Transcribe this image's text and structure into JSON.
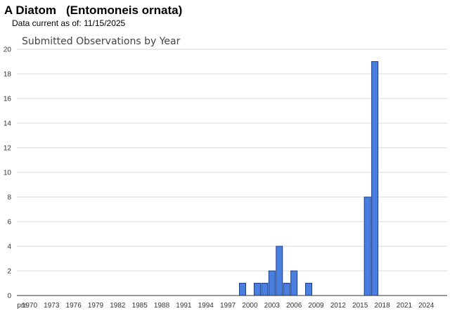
{
  "header": {
    "common_name": "A Diatom",
    "scientific_name": "(Entomoneis ornata)",
    "data_current_label": "Data current as of:",
    "data_current_date": "11/15/2025"
  },
  "chart_data": {
    "type": "bar",
    "title": "Submitted Observations by Year",
    "xlabel": "",
    "ylabel": "",
    "ylim": [
      0,
      20
    ],
    "y_ticks": [
      0,
      2,
      4,
      6,
      8,
      10,
      12,
      14,
      16,
      18,
      20
    ],
    "x_tick_labels": [
      "pre",
      "1970",
      "1973",
      "1976",
      "1979",
      "1982",
      "1985",
      "1988",
      "1991",
      "1994",
      "1997",
      "2000",
      "2003",
      "2006",
      "2009",
      "2012",
      "2015",
      "2018",
      "2021",
      "2024"
    ],
    "categories": [
      "pre",
      "1970",
      "1971",
      "1972",
      "1973",
      "1974",
      "1975",
      "1976",
      "1977",
      "1978",
      "1979",
      "1980",
      "1981",
      "1982",
      "1983",
      "1984",
      "1985",
      "1986",
      "1987",
      "1988",
      "1989",
      "1990",
      "1991",
      "1992",
      "1993",
      "1994",
      "1995",
      "1996",
      "1997",
      "1998",
      "1999",
      "2000",
      "2001",
      "2002",
      "2003",
      "2004",
      "2005",
      "2006",
      "2007",
      "2008",
      "2009",
      "2010",
      "2011",
      "2012",
      "2013",
      "2014",
      "2015",
      "2016",
      "2017",
      "2018",
      "2019",
      "2020",
      "2021",
      "2022",
      "2023",
      "2024",
      "2025"
    ],
    "values": [
      0,
      0,
      0,
      0,
      0,
      0,
      0,
      0,
      0,
      0,
      0,
      0,
      0,
      0,
      0,
      0,
      0,
      0,
      0,
      0,
      0,
      0,
      0,
      0,
      0,
      0,
      0,
      0,
      0,
      0,
      1,
      0,
      1,
      1,
      2,
      4,
      1,
      2,
      0,
      1,
      0,
      0,
      0,
      0,
      0,
      0,
      0,
      8,
      19,
      0,
      0,
      0,
      0,
      0,
      0,
      0,
      0
    ],
    "grid": true,
    "legend": "none",
    "colors": {
      "bar_fill": "#4a7fdf",
      "bar_stroke": "#1a3d8a"
    }
  }
}
